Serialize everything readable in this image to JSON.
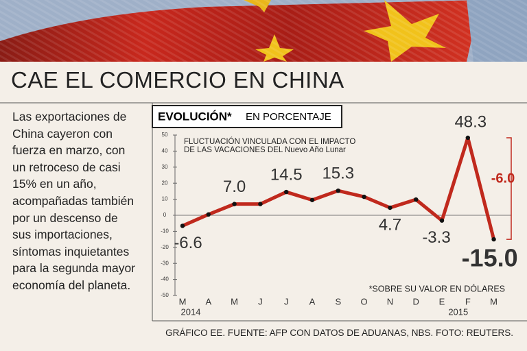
{
  "header": {
    "title": "CAE EL COMERCIO EN CHINA"
  },
  "body_lines": [
    "Las exportaciones de",
    "China cayeron con",
    "fuerza en marzo, con",
    "un retroceso de casi",
    "15% en un año,",
    "acompañadas también",
    "por un descenso de",
    "sus importaciones,",
    "síntomas inquietantes",
    "para la segunda mayor",
    "economía del planeta."
  ],
  "chart_data": {
    "type": "line",
    "heading": "EVOLUCIÓN*",
    "subheading": "EN PORCENTAJE",
    "annotation": [
      "FLUCTUACIÓN VINCULADA CON EL IMPACTO",
      "DE LAS VACACIONES DEL Nuevo Año Lunar"
    ],
    "change_label": "-6.0",
    "footnote": "*SOBRE SU VALOR EN DÓLARES",
    "categories": [
      "M",
      "A",
      "M",
      "J",
      "J",
      "A",
      "S",
      "O",
      "N",
      "D",
      "E",
      "F",
      "M"
    ],
    "year_labels": [
      "2014",
      null,
      null,
      null,
      null,
      null,
      null,
      null,
      null,
      null,
      null,
      "2015",
      null
    ],
    "values": [
      -6.6,
      0.5,
      7.0,
      7.0,
      14.5,
      9.5,
      15.3,
      11.5,
      4.7,
      9.8,
      -3.3,
      48.3,
      -15.0
    ],
    "value_labels": [
      "-6.6",
      null,
      "7.0",
      null,
      "14.5",
      null,
      "15.3",
      null,
      "4.7",
      null,
      "-3.3",
      "48.3",
      "-15.0"
    ],
    "color": "#c0291d",
    "ylim": [
      -50,
      50
    ],
    "yticks": [
      -50,
      -40,
      -30,
      -20,
      -10,
      0,
      10,
      20,
      30,
      40,
      50
    ]
  },
  "footer": {
    "credit": "GRÁFICO EE. FUENTE: AFP CON DATOS DE ADUANAS, NBS. FOTO: REUTERS."
  }
}
